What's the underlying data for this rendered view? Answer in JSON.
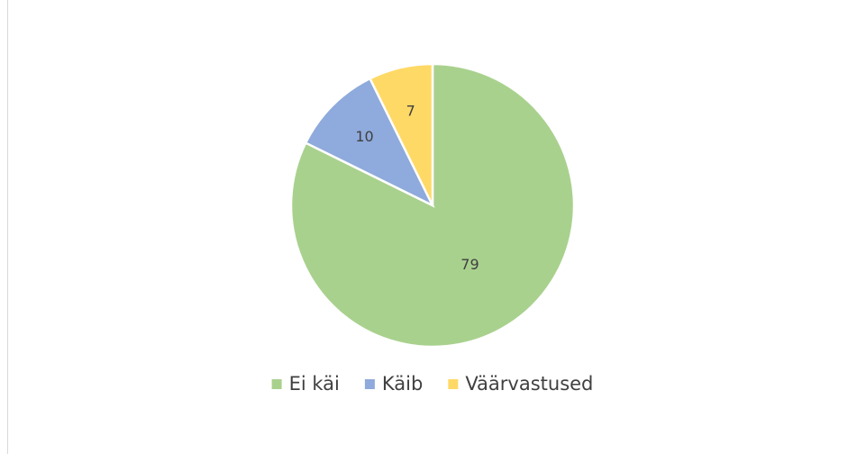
{
  "chart_data": {
    "type": "pie",
    "categories": [
      "Ei käi",
      "Käib",
      "Väärvastused"
    ],
    "values": [
      79,
      10,
      7
    ],
    "colors": [
      "#a9d18e",
      "#8faadc",
      "#ffd966"
    ],
    "legend": "bottom"
  }
}
